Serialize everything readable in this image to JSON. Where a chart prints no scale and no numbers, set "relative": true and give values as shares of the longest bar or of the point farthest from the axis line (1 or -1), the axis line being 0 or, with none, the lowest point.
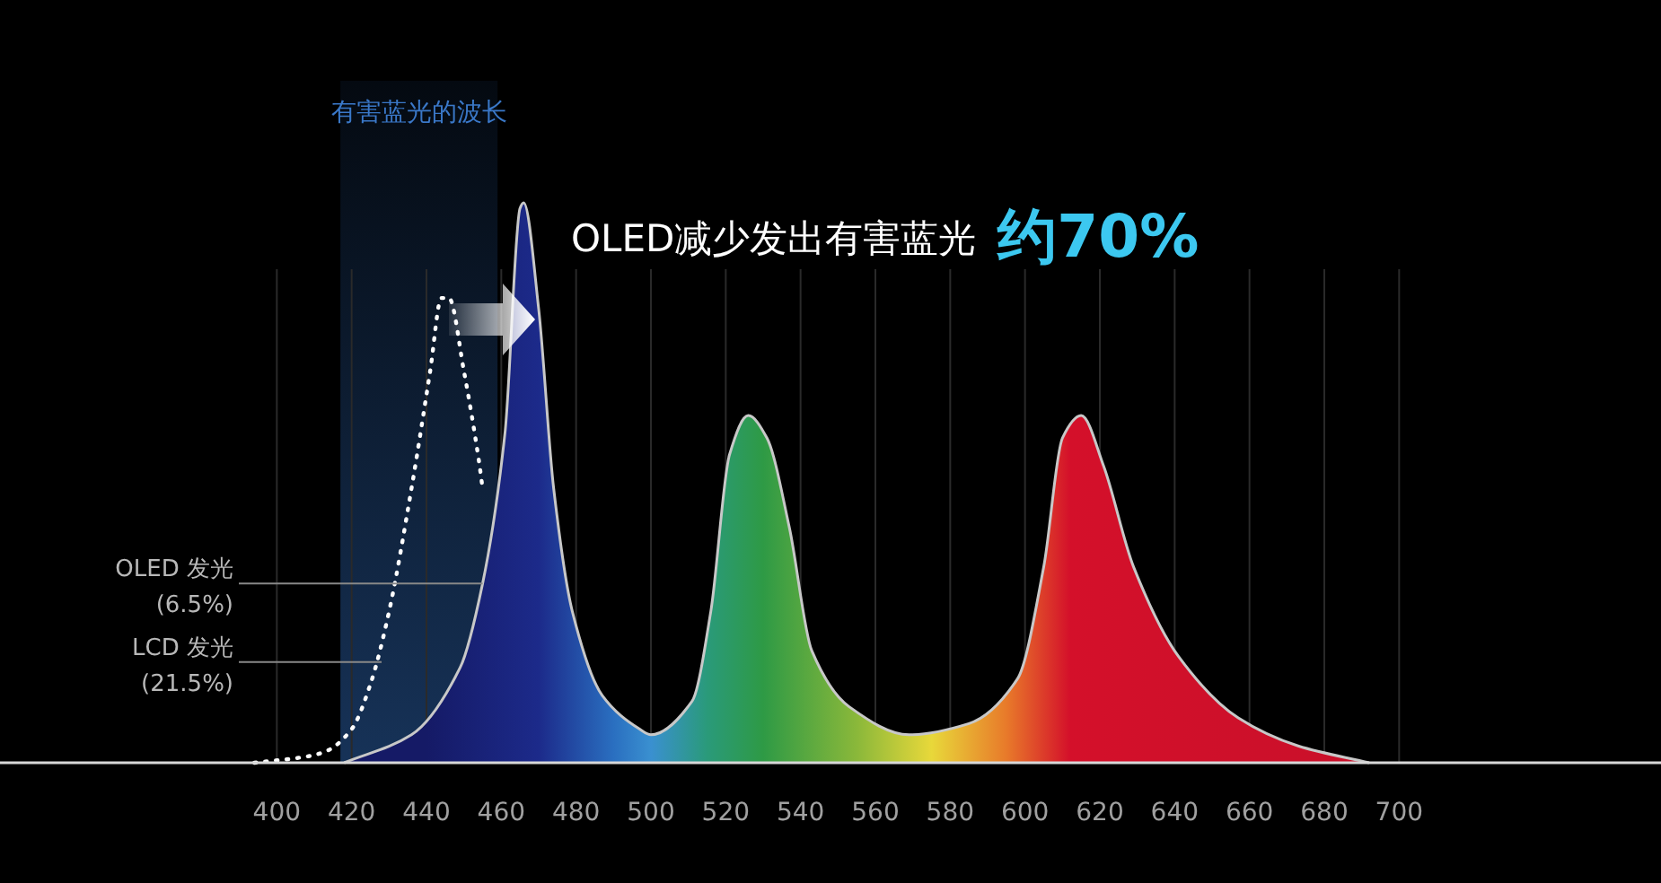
{
  "chart_data": {
    "type": "area",
    "title": "OLED减少发出有害蓝光",
    "subtitle": "约70%",
    "relative": true,
    "xlim": [
      326,
      770
    ],
    "xticks": [
      400,
      420,
      440,
      460,
      480,
      500,
      520,
      540,
      560,
      580,
      600,
      620,
      640,
      660,
      680,
      700
    ],
    "grid": "x",
    "series": [
      {
        "type": "area",
        "color": "#c8c8c8",
        "x": [
          418,
          436,
          449,
          455,
          461,
          465,
          466,
          470,
          474,
          479,
          487,
          497,
          500,
          511,
          516,
          521,
          526,
          531,
          537,
          543,
          553,
          569,
          585,
          598,
          605,
          610,
          615,
          621,
          629,
          641,
          657,
          673,
          692
        ],
        "values": [
          0,
          0.05,
          0.17,
          0.32,
          0.59,
          0.99,
          1,
          0.81,
          0.49,
          0.27,
          0.12,
          0.06,
          0.05,
          0.11,
          0.27,
          0.55,
          0.62,
          0.58,
          0.42,
          0.2,
          0.1,
          0.05,
          0.07,
          0.15,
          0.35,
          0.58,
          0.62,
          0.53,
          0.35,
          0.19,
          0.08,
          0.03,
          0
        ]
      },
      {
        "type": "line",
        "color": "#ffffff",
        "line_style": "dotted",
        "x": [
          394,
          407,
          413,
          420,
          425,
          430,
          436,
          441,
          444,
          446,
          450,
          454,
          455
        ],
        "values": [
          0,
          0.01,
          0.02,
          0.06,
          0.14,
          0.27,
          0.49,
          0.7,
          0.83,
          0.83,
          0.7,
          0.54,
          0.49
        ]
      }
    ],
    "bands": [
      {
        "axis": "x",
        "from": 417,
        "to": 459,
        "label": "有害蓝光的波长",
        "color": "#1c3f6e"
      }
    ],
    "annotations": [
      {
        "text": "OLED 发光\n(6.5%)",
        "x": 455,
        "y": 0.32
      },
      {
        "text": "LCD 发光\n(21.5%)",
        "x": 428,
        "y": 0.18
      }
    ]
  }
}
